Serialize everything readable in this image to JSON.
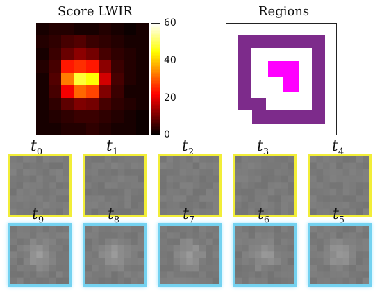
{
  "score_panel": {
    "title": "Score LWIR",
    "colorbar_ticks": [
      "60",
      "40",
      "20",
      "0"
    ],
    "grid": [
      [
        2,
        3,
        3,
        2,
        2,
        3,
        2,
        1,
        2
      ],
      [
        3,
        4,
        6,
        7,
        5,
        4,
        3,
        2,
        2
      ],
      [
        2,
        5,
        9,
        12,
        10,
        6,
        4,
        3,
        2
      ],
      [
        3,
        6,
        24,
        26,
        24,
        12,
        5,
        3,
        2
      ],
      [
        2,
        7,
        33,
        48,
        45,
        18,
        6,
        3,
        2
      ],
      [
        2,
        6,
        21,
        31,
        28,
        11,
        5,
        2,
        2
      ],
      [
        2,
        4,
        8,
        11,
        10,
        6,
        4,
        3,
        2
      ],
      [
        2,
        3,
        4,
        5,
        5,
        4,
        3,
        2,
        1
      ],
      [
        2,
        2,
        3,
        3,
        4,
        3,
        2,
        2,
        1
      ]
    ],
    "vmax": 60
  },
  "regions_panel": {
    "title": "Regions",
    "outer_color": "#7d2b8b",
    "inner_color": "#ff00ff"
  },
  "frames": {
    "top_row": [
      {
        "base": "t",
        "sub": "0"
      },
      {
        "base": "t",
        "sub": "1"
      },
      {
        "base": "t",
        "sub": "2"
      },
      {
        "base": "t",
        "sub": "3"
      },
      {
        "base": "t",
        "sub": "4"
      }
    ],
    "bottom_row": [
      {
        "base": "t",
        "sub": "9"
      },
      {
        "base": "t",
        "sub": "8"
      },
      {
        "base": "t",
        "sub": "7"
      },
      {
        "base": "t",
        "sub": "6"
      },
      {
        "base": "t",
        "sub": "5"
      }
    ],
    "top_border_color": "#f2ee38",
    "bottom_border_color": "#74d2f0"
  }
}
